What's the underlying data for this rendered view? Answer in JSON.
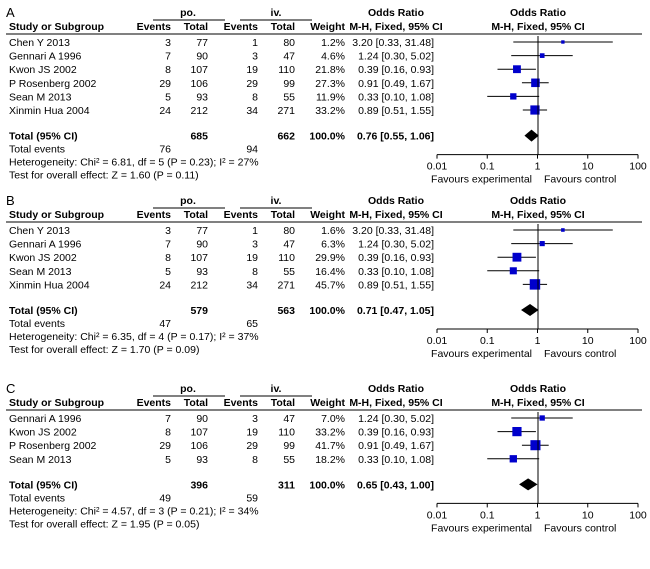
{
  "chart_data": [
    {
      "type": "forest",
      "panel_label": "A",
      "group_headers": {
        "experimental": "po.",
        "control": "iv."
      },
      "col_headers": {
        "study": "Study or Subgroup",
        "events_e": "Events",
        "total_e": "Total",
        "events_c": "Events",
        "total_c": "Total",
        "weight": "Weight",
        "or_title": "Odds Ratio",
        "or_method": "M-H, Fixed, 95% CI",
        "plot_title": "Odds Ratio",
        "plot_method": "M-H, Fixed, 95% CI"
      },
      "studies": [
        {
          "name": "Chen Y 2013",
          "events_e": "3",
          "total_e": "77",
          "events_c": "1",
          "total_c": "80",
          "weight": "1.2%",
          "or_text": "3.20 [0.33, 31.48]",
          "or": 3.2,
          "lo": 0.33,
          "hi": 31.48,
          "w": 1.2
        },
        {
          "name": "Gennari A 1996",
          "events_e": "7",
          "total_e": "90",
          "events_c": "3",
          "total_c": "47",
          "weight": "4.6%",
          "or_text": "1.24 [0.30, 5.02]",
          "or": 1.24,
          "lo": 0.3,
          "hi": 5.02,
          "w": 4.6
        },
        {
          "name": "Kwon JS 2002",
          "events_e": "8",
          "total_e": "107",
          "events_c": "19",
          "total_c": "110",
          "weight": "21.8%",
          "or_text": "0.39 [0.16, 0.93]",
          "or": 0.39,
          "lo": 0.16,
          "hi": 0.93,
          "w": 21.8
        },
        {
          "name": "P Rosenberg 2002",
          "events_e": "29",
          "total_e": "106",
          "events_c": "29",
          "total_c": "99",
          "weight": "27.3%",
          "or_text": "0.91 [0.49, 1.67]",
          "or": 0.91,
          "lo": 0.49,
          "hi": 1.67,
          "w": 27.3
        },
        {
          "name": "Sean M 2013",
          "events_e": "5",
          "total_e": "93",
          "events_c": "8",
          "total_c": "55",
          "weight": "11.9%",
          "or_text": "0.33 [0.10, 1.08]",
          "or": 0.33,
          "lo": 0.1,
          "hi": 1.08,
          "w": 11.9
        },
        {
          "name": "Xinmin Hua 2004",
          "events_e": "24",
          "total_e": "212",
          "events_c": "34",
          "total_c": "271",
          "weight": "33.2%",
          "or_text": "0.89 [0.51, 1.55]",
          "or": 0.89,
          "lo": 0.51,
          "hi": 1.55,
          "w": 33.2
        }
      ],
      "total": {
        "label": "Total (95% CI)",
        "total_e": "685",
        "total_c": "662",
        "weight": "100.0%",
        "or_text": "0.76 [0.55, 1.06]",
        "or": 0.76,
        "lo": 0.55,
        "hi": 1.06
      },
      "total_events": {
        "label": "Total events",
        "events_e": "76",
        "events_c": "94"
      },
      "heterogeneity": "Heterogeneity: Chi² = 6.81, df = 5 (P = 0.23); I² = 27%",
      "overall_effect": "Test for overall effect: Z = 1.60 (P = 0.11)",
      "axis": {
        "scale": "log",
        "xlim": [
          0.01,
          100
        ],
        "ticks": [
          "0.01",
          "0.1",
          "1",
          "10",
          "100"
        ],
        "tick_values": [
          0.01,
          0.1,
          1,
          10,
          100
        ],
        "left_label": "Favours experimental",
        "right_label": "Favours control"
      }
    },
    {
      "type": "forest",
      "panel_label": "B",
      "group_headers": {
        "experimental": "po.",
        "control": "iv."
      },
      "col_headers": {
        "study": "Study or Subgroup",
        "events_e": "Events",
        "total_e": "Total",
        "events_c": "Events",
        "total_c": "Total",
        "weight": "Weight",
        "or_title": "Odds Ratio",
        "or_method": "M-H, Fixed, 95% CI",
        "plot_title": "Odds Ratio",
        "plot_method": "M-H, Fixed, 95% CI"
      },
      "studies": [
        {
          "name": "Chen Y 2013",
          "events_e": "3",
          "total_e": "77",
          "events_c": "1",
          "total_c": "80",
          "weight": "1.6%",
          "or_text": "3.20 [0.33, 31.48]",
          "or": 3.2,
          "lo": 0.33,
          "hi": 31.48,
          "w": 1.6
        },
        {
          "name": "Gennari A 1996",
          "events_e": "7",
          "total_e": "90",
          "events_c": "3",
          "total_c": "47",
          "weight": "6.3%",
          "or_text": "1.24 [0.30, 5.02]",
          "or": 1.24,
          "lo": 0.3,
          "hi": 5.02,
          "w": 6.3
        },
        {
          "name": "Kwon JS 2002",
          "events_e": "8",
          "total_e": "107",
          "events_c": "19",
          "total_c": "110",
          "weight": "29.9%",
          "or_text": "0.39 [0.16, 0.93]",
          "or": 0.39,
          "lo": 0.16,
          "hi": 0.93,
          "w": 29.9
        },
        {
          "name": "Sean M 2013",
          "events_e": "5",
          "total_e": "93",
          "events_c": "8",
          "total_c": "55",
          "weight": "16.4%",
          "or_text": "0.33 [0.10, 1.08]",
          "or": 0.33,
          "lo": 0.1,
          "hi": 1.08,
          "w": 16.4
        },
        {
          "name": "Xinmin Hua 2004",
          "events_e": "24",
          "total_e": "212",
          "events_c": "34",
          "total_c": "271",
          "weight": "45.7%",
          "or_text": "0.89 [0.51, 1.55]",
          "or": 0.89,
          "lo": 0.51,
          "hi": 1.55,
          "w": 45.7
        }
      ],
      "total": {
        "label": "Total (95% CI)",
        "total_e": "579",
        "total_c": "563",
        "weight": "100.0%",
        "or_text": "0.71 [0.47, 1.05]",
        "or": 0.71,
        "lo": 0.47,
        "hi": 1.05
      },
      "total_events": {
        "label": "Total events",
        "events_e": "47",
        "events_c": "65"
      },
      "heterogeneity": "Heterogeneity: Chi² = 6.35, df = 4 (P = 0.17); I² = 37%",
      "overall_effect": "Test for overall effect: Z = 1.70 (P = 0.09)",
      "axis": {
        "scale": "log",
        "xlim": [
          0.01,
          100
        ],
        "ticks": [
          "0.01",
          "0.1",
          "1",
          "10",
          "100"
        ],
        "tick_values": [
          0.01,
          0.1,
          1,
          10,
          100
        ],
        "left_label": "Favours experimental",
        "right_label": "Favours control"
      }
    },
    {
      "type": "forest",
      "panel_label": "C",
      "group_headers": {
        "experimental": "po.",
        "control": "iv."
      },
      "col_headers": {
        "study": "Study or Subgroup",
        "events_e": "Events",
        "total_e": "Total",
        "events_c": "Events",
        "total_c": "Total",
        "weight": "Weight",
        "or_title": "Odds Ratio",
        "or_method": "M-H, Fixed, 95% CI",
        "plot_title": "Odds Ratio",
        "plot_method": "M-H, Fixed, 95% CI"
      },
      "studies": [
        {
          "name": "Gennari A 1996",
          "events_e": "7",
          "total_e": "90",
          "events_c": "3",
          "total_c": "47",
          "weight": "7.0%",
          "or_text": "1.24 [0.30, 5.02]",
          "or": 1.24,
          "lo": 0.3,
          "hi": 5.02,
          "w": 7.0
        },
        {
          "name": "Kwon JS 2002",
          "events_e": "8",
          "total_e": "107",
          "events_c": "19",
          "total_c": "110",
          "weight": "33.2%",
          "or_text": "0.39 [0.16, 0.93]",
          "or": 0.39,
          "lo": 0.16,
          "hi": 0.93,
          "w": 33.2
        },
        {
          "name": "P Rosenberg 2002",
          "events_e": "29",
          "total_e": "106",
          "events_c": "29",
          "total_c": "99",
          "weight": "41.7%",
          "or_text": "0.91 [0.49, 1.67]",
          "or": 0.91,
          "lo": 0.49,
          "hi": 1.67,
          "w": 41.7
        },
        {
          "name": "Sean M 2013",
          "events_e": "5",
          "total_e": "93",
          "events_c": "8",
          "total_c": "55",
          "weight": "18.2%",
          "or_text": "0.33 [0.10, 1.08]",
          "or": 0.33,
          "lo": 0.1,
          "hi": 1.08,
          "w": 18.2
        }
      ],
      "total": {
        "label": "Total (95% CI)",
        "total_e": "396",
        "total_c": "311",
        "weight": "100.0%",
        "or_text": "0.65 [0.43, 1.00]",
        "or": 0.65,
        "lo": 0.43,
        "hi": 1.0
      },
      "total_events": {
        "label": "Total events",
        "events_e": "49",
        "events_c": "59"
      },
      "heterogeneity": "Heterogeneity: Chi² = 4.57, df = 3 (P = 0.21); I² = 34%",
      "overall_effect": "Test for overall effect: Z = 1.95 (P = 0.05)",
      "axis": {
        "scale": "log",
        "xlim": [
          0.01,
          100
        ],
        "ticks": [
          "0.01",
          "0.1",
          "1",
          "10",
          "100"
        ],
        "tick_values": [
          0.01,
          0.1,
          1,
          10,
          100
        ],
        "left_label": "Favours experimental",
        "right_label": "Favours control"
      }
    }
  ],
  "colors": {
    "square": "#0000cc",
    "line": "#000000",
    "header_line": "#000000",
    "background": "#ffffff"
  }
}
